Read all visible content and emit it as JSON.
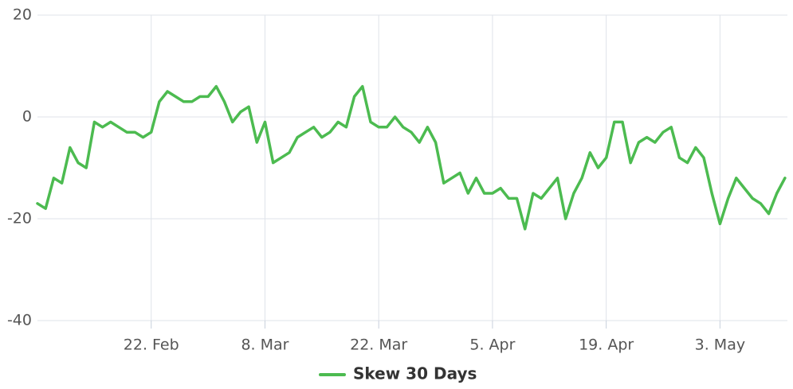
{
  "chart_data": {
    "type": "line",
    "categories": [
      null,
      null,
      null,
      null,
      null,
      null,
      null,
      null,
      null,
      null,
      null,
      null,
      null,
      null,
      "22. Feb",
      null,
      null,
      null,
      null,
      null,
      null,
      null,
      null,
      null,
      null,
      null,
      null,
      null,
      "8. Mar",
      null,
      null,
      null,
      null,
      null,
      null,
      null,
      null,
      null,
      null,
      null,
      null,
      null,
      "22. Mar",
      null,
      null,
      null,
      null,
      null,
      null,
      null,
      null,
      null,
      null,
      null,
      null,
      null,
      "5. Apr",
      null,
      null,
      null,
      null,
      null,
      null,
      null,
      null,
      null,
      null,
      null,
      null,
      null,
      "19. Apr",
      null,
      null,
      null,
      null,
      null,
      null,
      null,
      null,
      null,
      null,
      null,
      null,
      null,
      "3. May",
      null,
      null,
      null,
      null,
      null,
      null,
      null,
      null
    ],
    "series": [
      {
        "name": "Skew 30 Days",
        "color": "#4cbb50",
        "values": [
          -17,
          -18,
          -12,
          -13,
          -6,
          -9,
          -10,
          -1,
          -2,
          -1,
          -2,
          -3,
          -3,
          -4,
          -3,
          3,
          5,
          4,
          3,
          3,
          4,
          4,
          6,
          3,
          -1,
          1,
          2,
          -5,
          -1,
          -9,
          -8,
          -7,
          -4,
          -3,
          -2,
          -4,
          -3,
          -1,
          -2,
          4,
          6,
          -1,
          -2,
          -2,
          0,
          -2,
          -3,
          -5,
          -2,
          -5,
          -13,
          -12,
          -11,
          -15,
          -12,
          -15,
          -15,
          -14,
          -16,
          -16,
          -22,
          -15,
          -16,
          -14,
          -12,
          -20,
          -15,
          -12,
          -7,
          -10,
          -8,
          -1,
          -1,
          -9,
          -5,
          -4,
          -5,
          -3,
          -2,
          -8,
          -9,
          -6,
          -8,
          -15,
          -21,
          -16,
          -12,
          -14,
          -16,
          -17,
          -19,
          -15,
          -12
        ]
      }
    ],
    "ylim": [
      -40,
      20
    ],
    "yticks": [
      -40,
      -20,
      0,
      20
    ],
    "grid": true,
    "legend": "bottom"
  }
}
